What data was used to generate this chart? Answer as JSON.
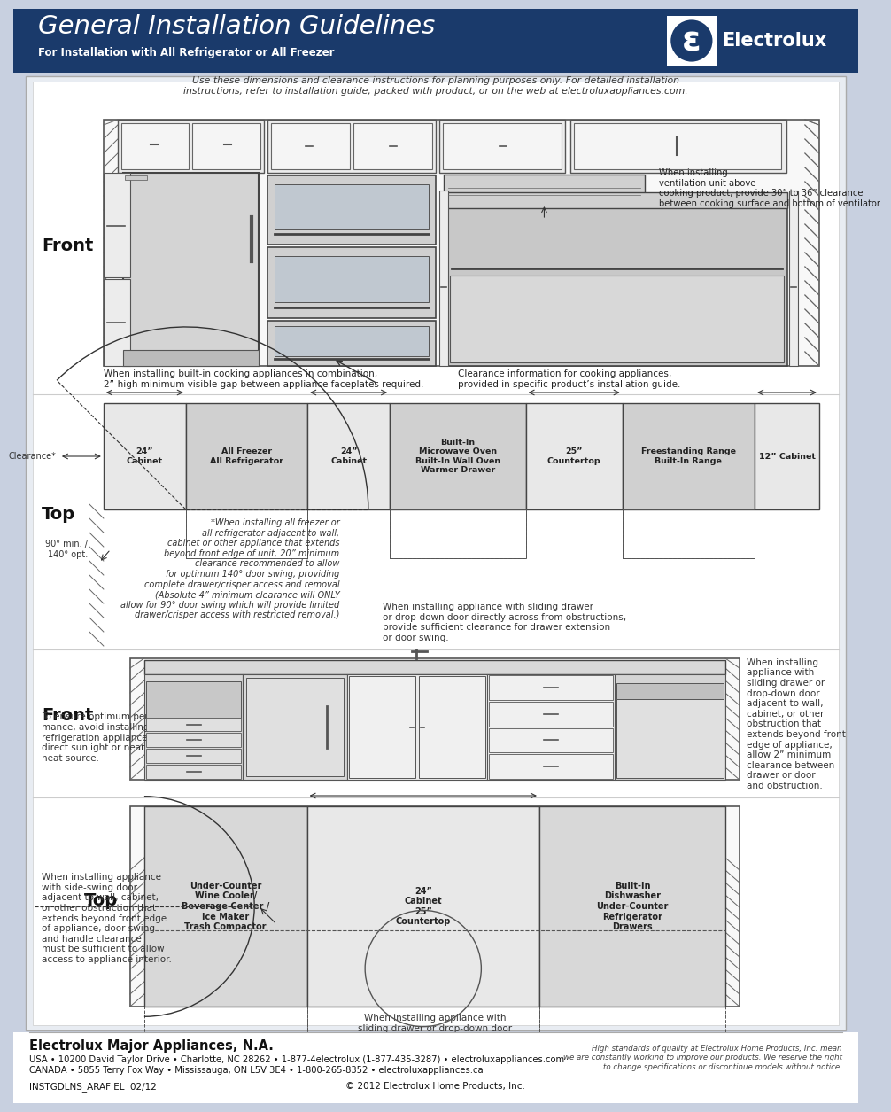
{
  "title": "General Installation Guidelines",
  "subtitle": "For Installation with All Refrigerator or All Freezer",
  "header_bg": "#1a3a6b",
  "page_bg": "#c8d0e0",
  "content_bg": "#e8ecf2",
  "white": "#ffffff",
  "dark": "#222222",
  "mid_gray": "#888888",
  "light_gray": "#d8d8d8",
  "disclaimer": "Use these dimensions and clearance instructions for planning purposes only. For detailed installation\ninstructions, refer to installation guide, packed with product, or on the web at electroluxappliances.com.",
  "ventilation_note": "When installing\nventilation unit above\ncooking product, provide 30” to 36” clearance\nbetween cooking surface and bottom of ventilator.",
  "cooking_note1": "When installing built-in cooking appliances in combination,\n2”-high minimum visible gap between appliance faceplates required.",
  "cooking_note2": "Clearance information for cooking appliances,\nprovided in specific product’s installation guide.",
  "top_note1": "*When installing all freezer or\nall refrigerator adjacent to wall,\ncabinet or other appliance that extends\nbeyond front edge of unit, 20” minimum\nclearance recommended to allow\nfor optimum 140° door swing, providing\ncomplete drawer/crisper access and removal\n(Absolute 4” minimum clearance will ONLY\nallow for 90° door swing which will provide limited\ndrawer/crisper access with restricted removal.)",
  "top_note2": "When installing appliance with sliding drawer\nor drop-down door directly across from obstructions,\nprovide sufficient clearance for drawer extension\nor door swing.",
  "top_dims": [
    "24”\nCabinet",
    "All Freezer\nAll Refrigerator",
    "24”\nCabinet",
    "Built-In\nMicrowave Oven\nBuilt-In Wall Oven\nWarmer Drawer",
    "25”\nCountertop",
    "Freestanding Range\nBuilt-In Range",
    "12” Cabinet"
  ],
  "clearance_label": "Clearance*",
  "door_swing": "90° min. /\n140° opt.",
  "front2_note": "To ensure optimum perfor-\nmance, avoid installing\nrefrigeration appliances in\ndirect sunlight or near\nheat source.",
  "bottom_top_dims": [
    "Under-Counter\nWine Cooler/\nBeverage Center /\nIce Maker\nTrash Compactor",
    "24”\nCabinet\n25”\nCountertop",
    "Built-In\nDishwasher\nUnder-Counter\nRefrigerator\nDrawers"
  ],
  "bottom_note1": "When installing appliance\nwith side-swing door\nadjacent to wall, cabinet,\nor other obstruction that\nextends beyond front edge\nof appliance, door swing\nand handle clearance\nmust be sufficient to allow\naccess to appliance interior.",
  "bottom_note2": "When installing appliance with\nsliding drawer or drop-down door\ndirectly across from obstructions,\nprovide sufficient clearance for\ndrawer extension or door swing.",
  "bottom_note3": "When installing\nappliance with\nsliding drawer or\ndrop-down door\nadjacent to wall,\ncabinet, or other\nobstruction that\nextends beyond front\nedge of appliance,\nallow 2” minimum\nclearance between\ndrawer or door\nand obstruction.",
  "footer_company": "Electrolux Major Appliances, N.A.",
  "footer_line1": "USA • 10200 David Taylor Drive • Charlotte, NC 28262 • 1-877-4electrolux (1-877-435-3287) • electroluxappliances.com",
  "footer_line2": "CANADA • 5855 Terry Fox Way • Mississauga, ON L5V 3E4 • 1-800-265-8352 • electroluxappliances.ca",
  "footer_model": "INSTGDLNS_ARAF EL  02/12",
  "footer_copy": "© 2012 Electrolux Home Products, Inc.",
  "footer_right": "High standards of quality at Electrolux Home Products, Inc. mean\nwe are constantly working to improve our products. We reserve the right\nto change specifications or discontinue models without notice."
}
